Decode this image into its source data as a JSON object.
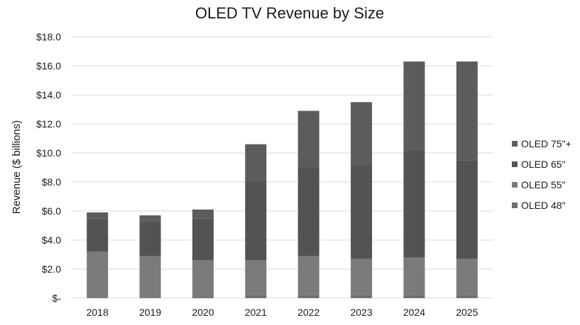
{
  "chart_data": {
    "type": "bar",
    "stacked": true,
    "title": "OLED TV Revenue by Size",
    "xlabel": "",
    "ylabel": "Revenue ($ billions)",
    "categories": [
      "2018",
      "2019",
      "2020",
      "2021",
      "2022",
      "2023",
      "2024",
      "2025"
    ],
    "ylim": [
      0,
      18
    ],
    "yticks": [
      0,
      2,
      4,
      6,
      8,
      10,
      12,
      14,
      16,
      18
    ],
    "ytick_labels": [
      "$-",
      "$2.0",
      "$4.0",
      "$6.0",
      "$8.0",
      "$10.0",
      "$12.0",
      "$14.0",
      "$16.0",
      "$18.0"
    ],
    "grid": true,
    "legend_position": "right",
    "series": [
      {
        "name": "OLED 48\"",
        "color": "#6e6e6e",
        "values": [
          0.0,
          0.0,
          0.1,
          0.2,
          0.2,
          0.2,
          0.2,
          0.2
        ]
      },
      {
        "name": "OLED 55\"",
        "color": "#7b7b7b",
        "values": [
          3.2,
          2.9,
          2.5,
          2.4,
          2.7,
          2.5,
          2.6,
          2.5
        ]
      },
      {
        "name": "OLED 65\"",
        "color": "#535353",
        "values": [
          2.3,
          2.4,
          2.9,
          5.4,
          6.1,
          6.5,
          7.4,
          6.8
        ]
      },
      {
        "name": "OLED 75\"+",
        "color": "#5c5c5c",
        "values": [
          0.4,
          0.4,
          0.6,
          2.6,
          3.9,
          4.3,
          6.1,
          6.8
        ]
      }
    ],
    "legend_order": [
      "OLED 75\"+",
      "OLED 65\"",
      "OLED 55\"",
      "OLED 48\""
    ],
    "gridline_color": "#d9d9d9"
  }
}
